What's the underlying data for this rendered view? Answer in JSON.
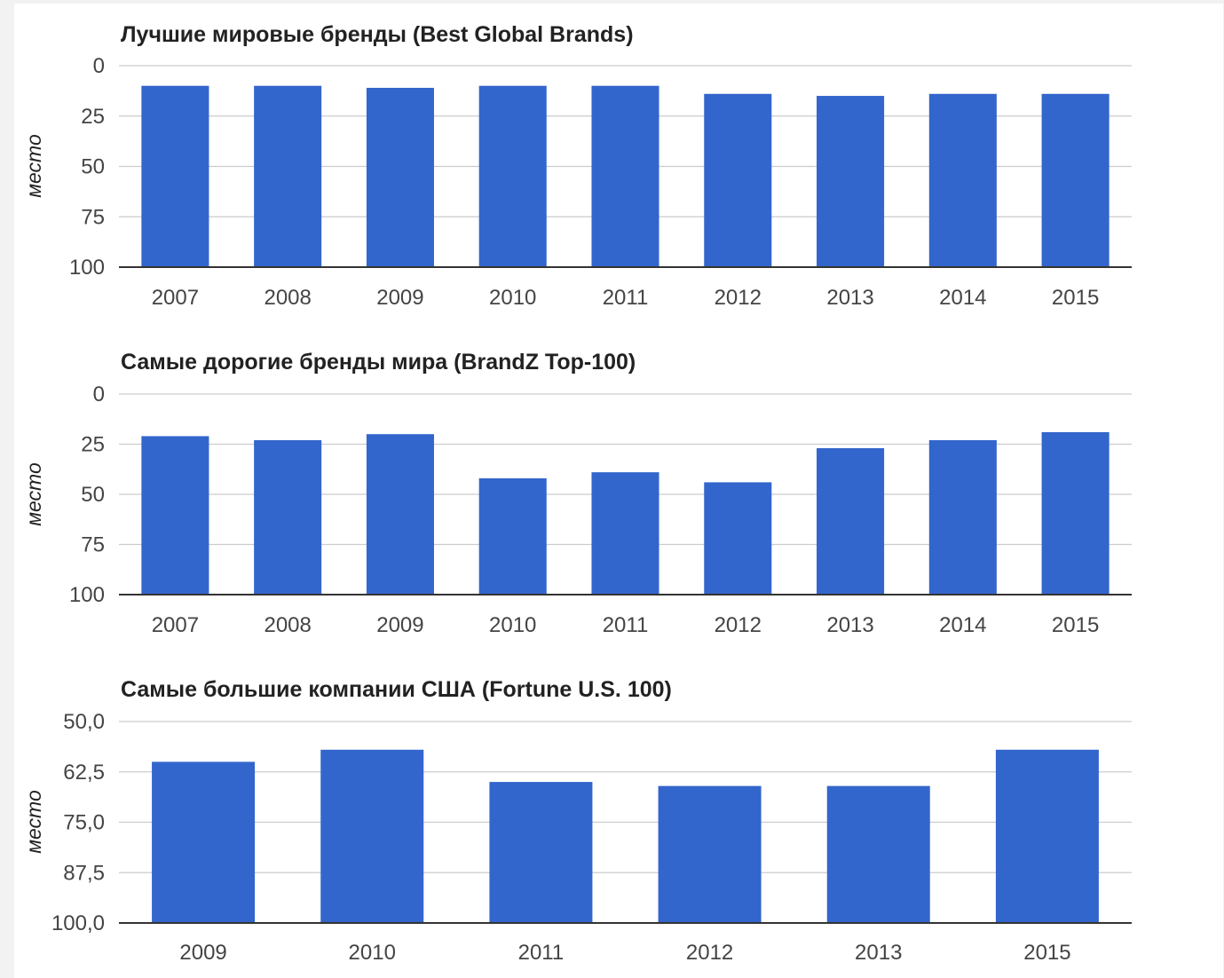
{
  "colors": {
    "bar": "#3366cc",
    "grid": "#cccccc",
    "axis": "#333333",
    "text": "#444444"
  },
  "chart_data": [
    {
      "type": "bar",
      "title": "Лучшие мировые бренды (Best Global Brands)",
      "xlabel": "",
      "ylabel": "место",
      "reversed_y": true,
      "ylim": [
        0,
        100
      ],
      "yticks": [
        0,
        25,
        50,
        75,
        100
      ],
      "ytick_labels": [
        "0",
        "25",
        "50",
        "75",
        "100"
      ],
      "grid": true,
      "categories": [
        "2007",
        "2008",
        "2009",
        "2010",
        "2011",
        "2012",
        "2013",
        "2014",
        "2015"
      ],
      "values": [
        10,
        10,
        11,
        10,
        10,
        14,
        15,
        14,
        14
      ]
    },
    {
      "type": "bar",
      "title": "Самые дорогие бренды мира (BrandZ Top-100)",
      "xlabel": "",
      "ylabel": "место",
      "reversed_y": true,
      "ylim": [
        0,
        100
      ],
      "yticks": [
        0,
        25,
        50,
        75,
        100
      ],
      "ytick_labels": [
        "0",
        "25",
        "50",
        "75",
        "100"
      ],
      "grid": true,
      "categories": [
        "2007",
        "2008",
        "2009",
        "2010",
        "2011",
        "2012",
        "2013",
        "2014",
        "2015"
      ],
      "values": [
        21,
        23,
        20,
        42,
        39,
        44,
        27,
        23,
        19
      ]
    },
    {
      "type": "bar",
      "title": "Самые большие компании США (Fortune U.S. 100)",
      "xlabel": "",
      "ylabel": "место",
      "reversed_y": true,
      "ylim": [
        50,
        100
      ],
      "yticks": [
        50,
        62.5,
        75,
        87.5,
        100
      ],
      "ytick_labels": [
        "50,0",
        "62,5",
        "75,0",
        "87,5",
        "100,0"
      ],
      "grid": true,
      "categories": [
        "2009",
        "2010",
        "2011",
        "2012",
        "2013",
        "2015"
      ],
      "values": [
        60,
        57,
        65,
        66,
        66,
        57
      ]
    }
  ]
}
